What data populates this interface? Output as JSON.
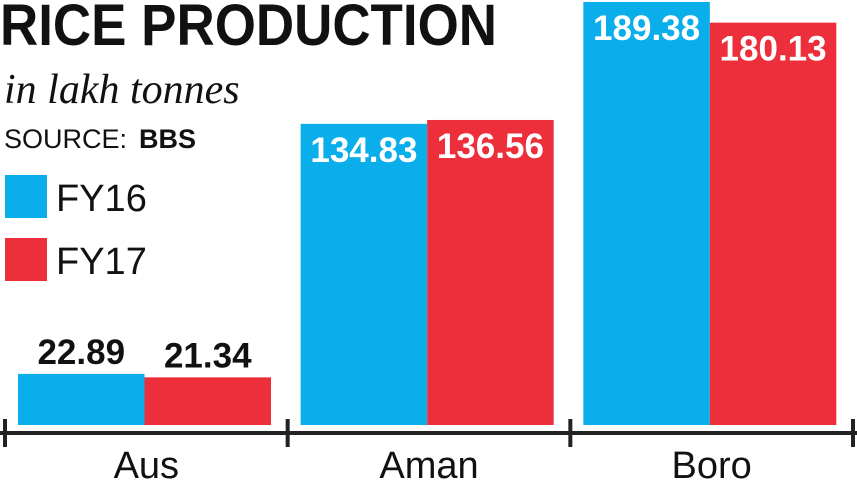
{
  "chart_data": {
    "type": "bar",
    "title": "RICE PRODUCTION",
    "subtitle": "in lakh tonnes",
    "source_label": "SOURCE:",
    "source": "BBS",
    "categories": [
      "Aus",
      "Aman",
      "Boro"
    ],
    "series": [
      {
        "name": "FY16",
        "color": "#0aaeea",
        "values": [
          22.89,
          134.83,
          189.38
        ]
      },
      {
        "name": "FY17",
        "color": "#ec2f3b",
        "values": [
          21.34,
          136.56,
          180.13
        ]
      }
    ]
  }
}
